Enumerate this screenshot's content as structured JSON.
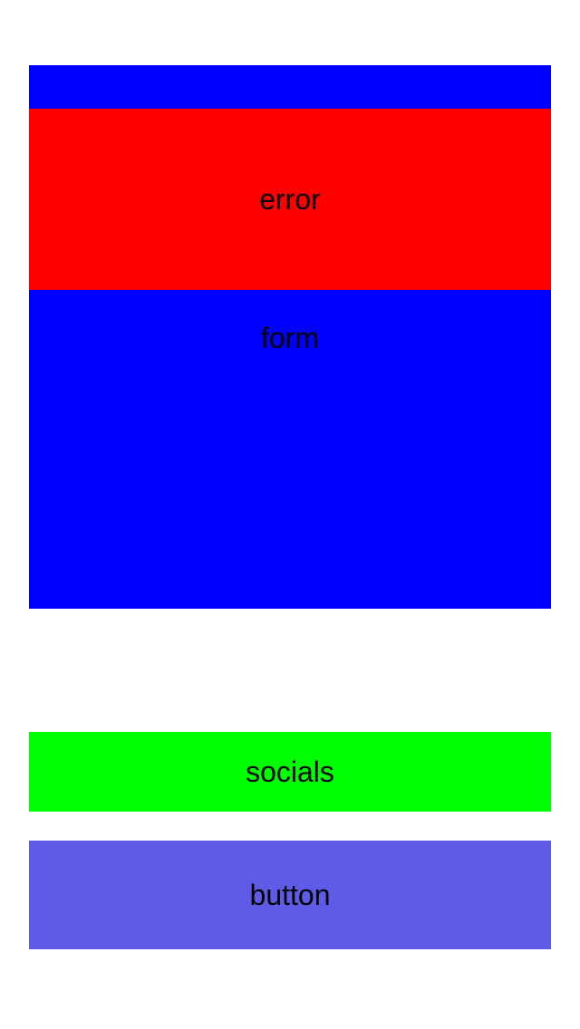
{
  "form": {
    "label": "form",
    "color": "#0000FF"
  },
  "error": {
    "label": "error",
    "color": "#FF0000"
  },
  "socials": {
    "label": "socials",
    "color": "#00FF00"
  },
  "button": {
    "label": "button",
    "color": "#5E5CE6"
  },
  "page": {
    "background": "#FFFFFF"
  }
}
